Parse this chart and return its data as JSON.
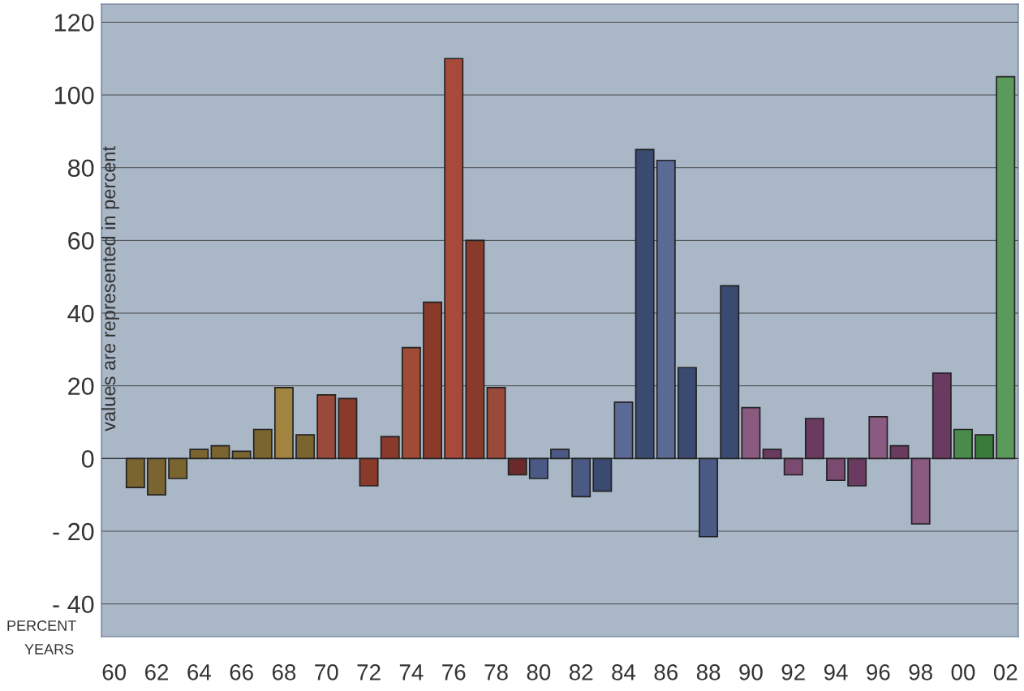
{
  "chart_data": {
    "type": "bar",
    "xlabel": "YEARS",
    "ylabel": "PERCENT",
    "annotations": [
      "values are represented in percent"
    ],
    "categories": [
      "60",
      null,
      "62",
      null,
      "64",
      null,
      "66",
      null,
      "68",
      null,
      "70",
      null,
      "72",
      null,
      "74",
      null,
      "76",
      null,
      "78",
      null,
      "80",
      null,
      "82",
      null,
      "84",
      null,
      "86",
      null,
      "88",
      null,
      "90",
      null,
      "92",
      null,
      "94",
      null,
      "96",
      null,
      "98",
      null,
      "00",
      null,
      "02"
    ],
    "values": [
      null,
      -8,
      -10,
      -5.5,
      2.5,
      3.5,
      2,
      8,
      19.5,
      6.5,
      17.5,
      16.5,
      -7.5,
      6,
      30.5,
      43,
      110,
      60,
      19.5,
      -4.5,
      -5.5,
      2.5,
      -10.5,
      -9,
      15.5,
      85,
      82,
      25,
      -21.5,
      47.5,
      14,
      2.5,
      -4.5,
      11,
      -6,
      -7.5,
      11.5,
      3.5,
      -18,
      23.5,
      8,
      6.5,
      105
    ],
    "colors": [
      "#7a6430",
      "#7a6430",
      "#7a6430",
      "#7a6430",
      "#7a6430",
      "#7a6430",
      "#7a6430",
      "#7a6430",
      "#a08440",
      "#7a6430",
      "#9a4a3a",
      "#8a3a2a",
      "#8a3a2a",
      "#8a3a2a",
      "#a04a38",
      "#8a3a2a",
      "#a84a3a",
      "#8a3a2a",
      "#9a4a3a",
      "#6a2a2a",
      "#4a5a85",
      "#4a5a85",
      "#4a5a85",
      "#3a4a70",
      "#5a6a95",
      "#3a4a70",
      "#5a6a95",
      "#3a4a70",
      "#4a5a85",
      "#3a4a70",
      "#8a5a80",
      "#6a3a60",
      "#7a4a70",
      "#6a3a60",
      "#7a4a70",
      "#6a3a60",
      "#8a5a80",
      "#6a3a60",
      "#8a5a80",
      "#6a3a60",
      "#4a8a4a",
      "#3a7a3a",
      "#5a9a5a"
    ],
    "ylim": [
      -49,
      125
    ],
    "yticks": [
      {
        "value": -40,
        "label": "- 40"
      },
      {
        "value": -20,
        "label": "- 20"
      },
      0,
      20,
      40,
      60,
      80,
      100,
      120
    ],
    "grid": "y",
    "legend": false
  }
}
